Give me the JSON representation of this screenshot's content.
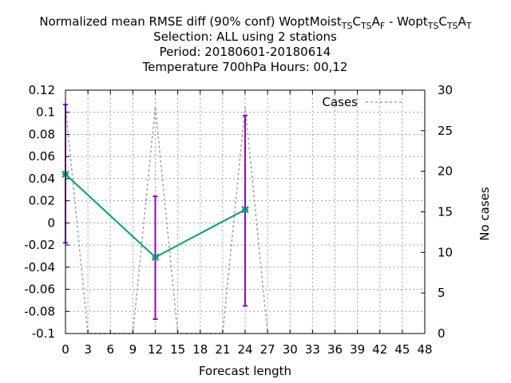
{
  "chart_data": {
    "type": "line",
    "title_lines": [
      "Normalized mean RMSE diff (90% conf) WoptMoist",
      "Selection: ALL using     2 stations",
      "Period: 20180601-20180614",
      "Temperature 700hPa   Hours:  00,12"
    ],
    "title_parts": {
      "main": "Normalized mean RMSE diff (90% conf) WoptMoist",
      "sub1": "TS",
      "c1": "C",
      "sub2": "TS",
      "a1": "A",
      "sub3": "F",
      "sep": " - Wopt",
      "sub4": "TS",
      "c2": "C",
      "sub5": "TS",
      "a2": "A",
      "sub6": "T"
    },
    "xlabel": "Forecast length",
    "ylabel": "",
    "y2label": "No cases",
    "xlim": [
      0,
      48
    ],
    "ylim": [
      -0.1,
      0.12
    ],
    "y2lim": [
      0,
      30
    ],
    "xticks": [
      "0",
      "3",
      "6",
      "9",
      "12",
      "15",
      "18",
      "21",
      "24",
      "27",
      "30",
      "33",
      "36",
      "39",
      "42",
      "45",
      "48"
    ],
    "yticks": [
      "-0.1",
      "-0.08",
      "-0.06",
      "-0.04",
      "-0.02",
      "0",
      "0.02",
      "0.04",
      "0.06",
      "0.08",
      "0.1",
      "0.12"
    ],
    "y2ticks": [
      "0",
      "5",
      "10",
      "15",
      "20",
      "25",
      "30"
    ],
    "grid": true,
    "legend_position": "top-right",
    "series": [
      {
        "name": "",
        "color": "#009e73",
        "x": [
          0,
          12,
          24
        ],
        "y": [
          0.044,
          -0.031,
          0.012
        ],
        "err_low": [
          -0.018,
          -0.087,
          -0.075
        ],
        "err_high": [
          0.107,
          0.024,
          0.097
        ],
        "err_color": "#9400d3"
      },
      {
        "name": "Cases",
        "color": "#a0a0a0",
        "axis": "y2",
        "x": [
          0,
          3,
          9,
          12,
          15,
          21,
          24,
          27
        ],
        "y": [
          28,
          0,
          0,
          28,
          0,
          0,
          28,
          0
        ]
      }
    ]
  }
}
